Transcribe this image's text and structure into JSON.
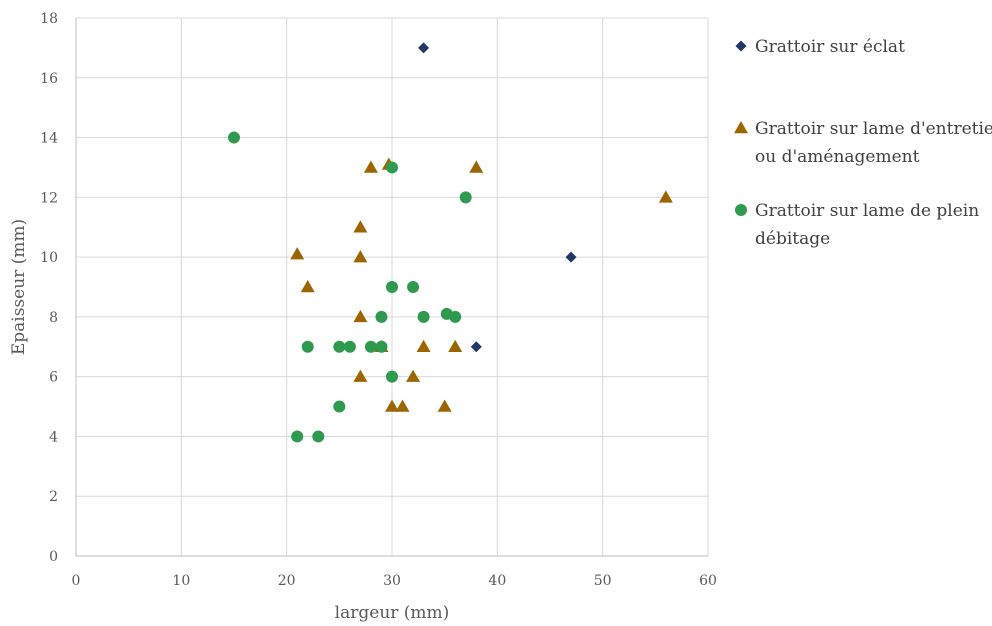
{
  "chart_data": {
    "type": "scatter",
    "xlabel": "largeur (mm)",
    "ylabel": "Epaisseur (mm)",
    "xlim": [
      0,
      60
    ],
    "ylim": [
      0,
      18
    ],
    "xticks": [
      0,
      10,
      20,
      30,
      40,
      50,
      60
    ],
    "yticks": [
      0,
      2,
      4,
      6,
      8,
      10,
      12,
      14,
      16,
      18
    ],
    "grid": true,
    "legend_position": "right",
    "series": [
      {
        "name": "Grattoir sur éclat",
        "name_lines": [
          "Grattoir sur éclat"
        ],
        "marker": "diamond",
        "color": "#203864",
        "points": [
          [
            33,
            17
          ],
          [
            47,
            10
          ],
          [
            38,
            7
          ]
        ]
      },
      {
        "name": "Grattoir sur lame d'entretien ou d'aménagement",
        "name_lines": [
          "Grattoir sur lame d'entretien",
          "ou d'aménagement"
        ],
        "marker": "triangle",
        "color": "#9C6500",
        "points": [
          [
            28,
            13
          ],
          [
            29.7,
            13.1
          ],
          [
            38,
            13
          ],
          [
            56,
            12
          ],
          [
            27,
            11
          ],
          [
            21,
            10.1
          ],
          [
            27,
            10
          ],
          [
            22,
            9
          ],
          [
            27,
            8
          ],
          [
            29,
            7
          ],
          [
            33,
            7
          ],
          [
            36,
            7
          ],
          [
            27,
            6
          ],
          [
            32,
            6
          ],
          [
            30,
            5
          ],
          [
            31,
            5
          ],
          [
            35,
            5
          ]
        ]
      },
      {
        "name": "Grattoir sur lame de plein débitage",
        "name_lines": [
          "Grattoir sur lame de plein",
          "débitage"
        ],
        "marker": "circle",
        "color": "#2E9A4F",
        "points": [
          [
            15,
            14
          ],
          [
            30,
            13
          ],
          [
            37,
            12
          ],
          [
            30,
            9
          ],
          [
            32,
            9
          ],
          [
            29,
            8
          ],
          [
            33,
            8
          ],
          [
            35.2,
            8.1
          ],
          [
            36,
            8
          ],
          [
            22,
            7
          ],
          [
            25,
            7
          ],
          [
            26,
            7
          ],
          [
            28,
            7
          ],
          [
            29,
            7
          ],
          [
            30,
            6
          ],
          [
            25,
            5
          ],
          [
            21,
            4
          ],
          [
            23,
            4
          ]
        ]
      }
    ]
  }
}
